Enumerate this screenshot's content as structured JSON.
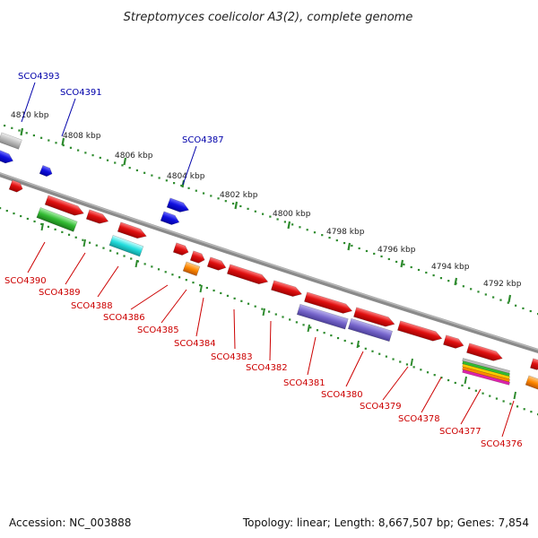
{
  "title": "Streptomyces coelicolor A3(2), complete genome",
  "footer": {
    "accession": "Accession: NC_003888",
    "summary": "Topology: linear; Length: 8,667,507 bp; Genes: 7,854"
  },
  "colors": {
    "backbone": "#8a8a8a",
    "ticks": "#2e8b2e",
    "forward_label": "#0000aa",
    "reverse_label": "#cc0000",
    "gene_red": "#e01010",
    "gene_blue": "#1010e0",
    "gene_gray": "#bbbbbb",
    "gene_green": "#33bb33",
    "gene_cyan": "#22dddd",
    "gene_orange": "#ff8800",
    "gene_purple": "#7766cc"
  },
  "scale": {
    "ticks": [
      {
        "label": "4810 kbp"
      },
      {
        "label": "4808 kbp"
      },
      {
        "label": "4806 kbp"
      },
      {
        "label": "4804 kbp"
      },
      {
        "label": "4802 kbp"
      },
      {
        "label": "4800 kbp"
      },
      {
        "label": "4798 kbp"
      },
      {
        "label": "4796 kbp"
      },
      {
        "label": "4794 kbp"
      },
      {
        "label": "4792 kbp"
      }
    ]
  },
  "forward_genes": [
    {
      "label": "SCO4393"
    },
    {
      "label": "SCO4391"
    },
    {
      "label": "SCO4387"
    }
  ],
  "reverse_genes": [
    {
      "label": "SCO4390"
    },
    {
      "label": "SCO4389"
    },
    {
      "label": "SCO4388"
    },
    {
      "label": "SCO4386"
    },
    {
      "label": "SCO4385"
    },
    {
      "label": "SCO4384"
    },
    {
      "label": "SCO4383"
    },
    {
      "label": "SCO4382"
    },
    {
      "label": "SCO4381"
    },
    {
      "label": "SCO4380"
    },
    {
      "label": "SCO4379"
    },
    {
      "label": "SCO4378"
    },
    {
      "label": "SCO4377"
    },
    {
      "label": "SCO4376"
    }
  ]
}
